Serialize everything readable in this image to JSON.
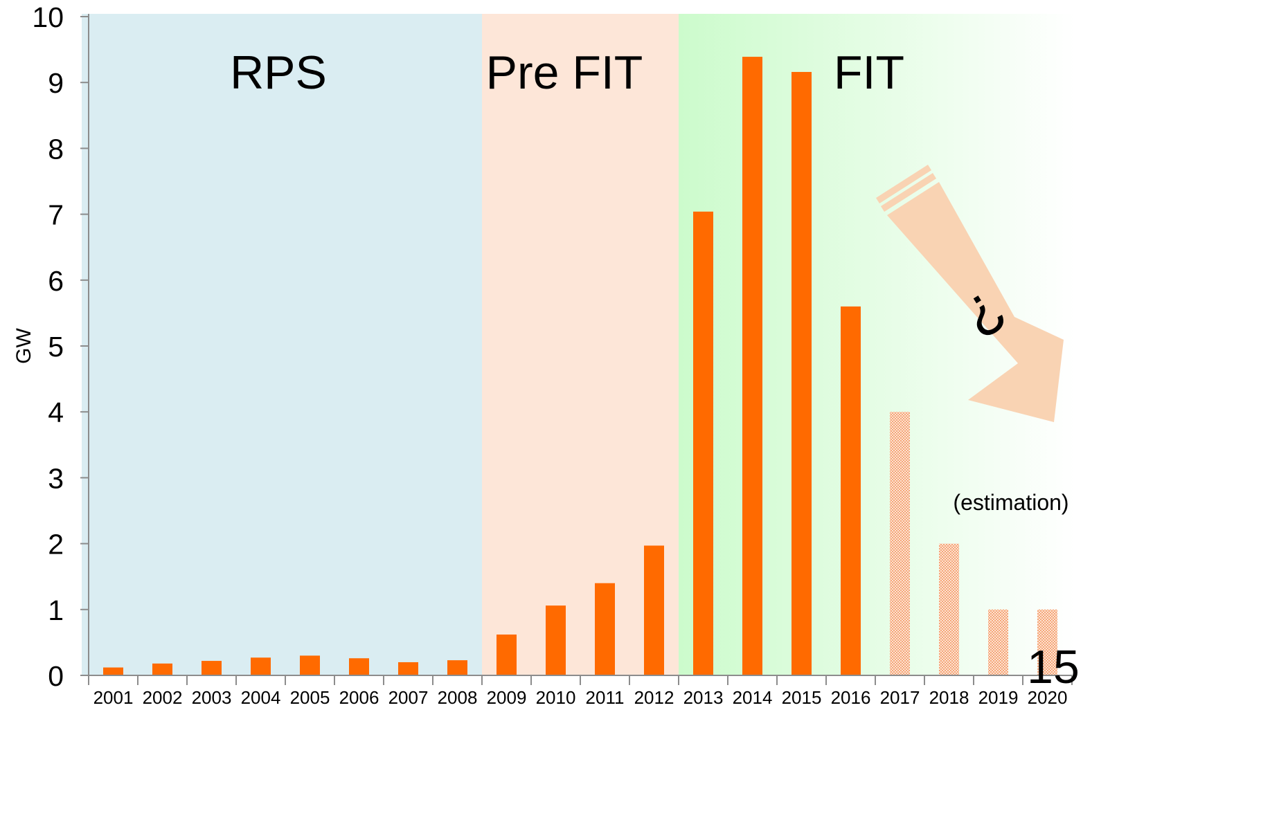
{
  "chart_data": {
    "type": "bar",
    "ylabel": "GW",
    "xlabel": "",
    "ylim": [
      0,
      10
    ],
    "yticks": [
      "0",
      "1",
      "2",
      "3",
      "4",
      "5",
      "6",
      "7",
      "8",
      "9",
      "10"
    ],
    "categories": [
      "2001",
      "2002",
      "2003",
      "2004",
      "2005",
      "2006",
      "2007",
      "2008",
      "2009",
      "2010",
      "2011",
      "2012",
      "2013",
      "2014",
      "2015",
      "2016",
      "2017",
      "2018",
      "2019",
      "2020"
    ],
    "values": [
      0.12,
      0.18,
      0.22,
      0.27,
      0.3,
      0.26,
      0.2,
      0.23,
      0.62,
      1.06,
      1.4,
      1.97,
      7.04,
      9.39,
      9.16,
      5.6,
      4.0,
      2.0,
      1.0,
      1.0
    ],
    "estimated": [
      false,
      false,
      false,
      false,
      false,
      false,
      false,
      false,
      false,
      false,
      false,
      false,
      false,
      false,
      false,
      false,
      true,
      true,
      true,
      true
    ],
    "bar_color": "#ff6a00",
    "phases": [
      {
        "label": "RPS",
        "from": "2001",
        "to": "2008",
        "color": "#daedf2"
      },
      {
        "label": "Pre FIT",
        "from": "2009",
        "to": "2012",
        "color": "#fde6d8"
      },
      {
        "label": "FIT",
        "from": "2013",
        "to": "2020",
        "color": "#ccfbcc"
      }
    ],
    "annotations": {
      "question_mark": "?",
      "estimation_note": "(estimation)",
      "page_number": "15"
    },
    "arrow_color": "#f9d3b3",
    "grid": false
  }
}
